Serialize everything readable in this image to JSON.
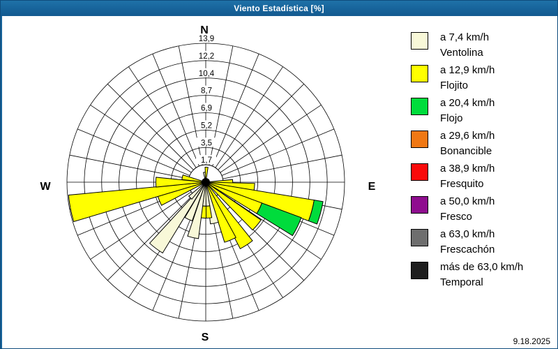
{
  "window": {
    "title": "Viento Estadística [%]"
  },
  "date": "9.18.2025",
  "chart_data": {
    "type": "wind-rose",
    "title": "Viento Estadística [%]",
    "value_units": "%",
    "sectors": 32,
    "sector_width_deg": 11.25,
    "grid": true,
    "rmax": 13.9,
    "ring_values": [
      1.7,
      3.5,
      5.2,
      6.9,
      8.7,
      10.4,
      12.2,
      13.9
    ],
    "ring_labels": [
      "1,7",
      "3,5",
      "5,2",
      "6,9",
      "8,7",
      "10,4",
      "12,2",
      "13,9"
    ],
    "compass_labels": {
      "n": "N",
      "e": "E",
      "s": "S",
      "w": "W"
    },
    "legend_position": "right",
    "speed_bins": [
      {
        "id": "ventolina",
        "swatch_color": "#F8F8D8",
        "speed_label": "a 7,4 km/h",
        "name": "Ventolina"
      },
      {
        "id": "flojito",
        "swatch_color": "#FFFF00",
        "speed_label": "a 12,9 km/h",
        "name": "Flojito"
      },
      {
        "id": "flojo",
        "swatch_color": "#00DC3C",
        "speed_label": "a 20,4 km/h",
        "name": "Flojo"
      },
      {
        "id": "bonancible",
        "swatch_color": "#F07814",
        "speed_label": "a 29,6 km/h",
        "name": "Bonancible"
      },
      {
        "id": "fresquito",
        "swatch_color": "#FA0A0A",
        "speed_label": "a 38,9 km/h",
        "name": "Fresquito"
      },
      {
        "id": "fresco",
        "swatch_color": "#8F0D8F",
        "speed_label": "a 50,0 km/h",
        "name": "Fresco"
      },
      {
        "id": "frescachon",
        "swatch_color": "#6E6E6E",
        "speed_label": "a 63,0 km/h",
        "name": "Frescachón"
      },
      {
        "id": "temporal",
        "swatch_color": "#1E1E1E",
        "speed_label": "más de 63,0 km/h",
        "name": "Temporal"
      }
    ],
    "petals": [
      {
        "dir_deg": 352,
        "segments": [
          {
            "bin": "ventolina",
            "from_pct": 0,
            "to_pct": 1.0
          }
        ]
      },
      {
        "dir_deg": 3,
        "segments": [
          {
            "bin": "flojito",
            "from_pct": 0,
            "to_pct": 1.5
          }
        ]
      },
      {
        "dir_deg": 90,
        "segments": [
          {
            "bin": "flojito",
            "from_pct": 0,
            "to_pct": 2.7
          }
        ]
      },
      {
        "dir_deg": 97,
        "segments": [
          {
            "bin": "flojito",
            "from_pct": 0,
            "to_pct": 4.9
          }
        ]
      },
      {
        "dir_deg": 105,
        "segments": [
          {
            "bin": "flojito",
            "from_pct": 0,
            "to_pct": 11.0
          },
          {
            "bin": "flojo",
            "from_pct": 11.0,
            "to_pct": 11.9
          }
        ]
      },
      {
        "dir_deg": 116,
        "segments": [
          {
            "bin": "flojito",
            "from_pct": 0,
            "to_pct": 6.0
          },
          {
            "bin": "flojo",
            "from_pct": 6.0,
            "to_pct": 10.2
          }
        ]
      },
      {
        "dir_deg": 130,
        "segments": [
          {
            "bin": "flojito",
            "from_pct": 0,
            "to_pct": 6.7
          }
        ]
      },
      {
        "dir_deg": 147,
        "segments": [
          {
            "bin": "flojito",
            "from_pct": 0,
            "to_pct": 7.5
          }
        ]
      },
      {
        "dir_deg": 157,
        "segments": [
          {
            "bin": "flojito",
            "from_pct": 0,
            "to_pct": 6.3
          }
        ]
      },
      {
        "dir_deg": 168,
        "segments": [
          {
            "bin": "ventolina",
            "from_pct": 0,
            "to_pct": 4.2
          }
        ]
      },
      {
        "dir_deg": 176,
        "segments": [
          {
            "bin": "ventolina",
            "from_pct": 0,
            "to_pct": 2.4
          },
          {
            "bin": "flojito",
            "from_pct": 2.4,
            "to_pct": 3.6
          }
        ]
      },
      {
        "dir_deg": 185,
        "segments": [
          {
            "bin": "ventolina",
            "from_pct": 0,
            "to_pct": 2.4
          },
          {
            "bin": "flojito",
            "from_pct": 2.4,
            "to_pct": 3.6
          }
        ]
      },
      {
        "dir_deg": 193,
        "segments": [
          {
            "bin": "ventolina",
            "from_pct": 0,
            "to_pct": 5.7
          }
        ]
      },
      {
        "dir_deg": 205,
        "segments": [
          {
            "bin": "ventolina",
            "from_pct": 0,
            "to_pct": 4.1
          }
        ]
      },
      {
        "dir_deg": 217,
        "segments": [
          {
            "bin": "ventolina",
            "from_pct": 0,
            "to_pct": 8.3
          }
        ]
      },
      {
        "dir_deg": 225,
        "segments": [
          {
            "bin": "ventolina",
            "from_pct": 0,
            "to_pct": 2.2
          }
        ]
      },
      {
        "dir_deg": 248,
        "segments": [
          {
            "bin": "flojito",
            "from_pct": 0,
            "to_pct": 5.0
          }
        ]
      },
      {
        "dir_deg": 259,
        "segments": [
          {
            "bin": "flojito",
            "from_pct": 0,
            "to_pct": 13.8
          }
        ]
      },
      {
        "dir_deg": 270,
        "segments": [
          {
            "bin": "flojito",
            "from_pct": 0,
            "to_pct": 5.0
          }
        ]
      },
      {
        "dir_deg": 282,
        "segments": [
          {
            "bin": "flojito",
            "from_pct": 0,
            "to_pct": 2.4
          }
        ]
      }
    ]
  }
}
